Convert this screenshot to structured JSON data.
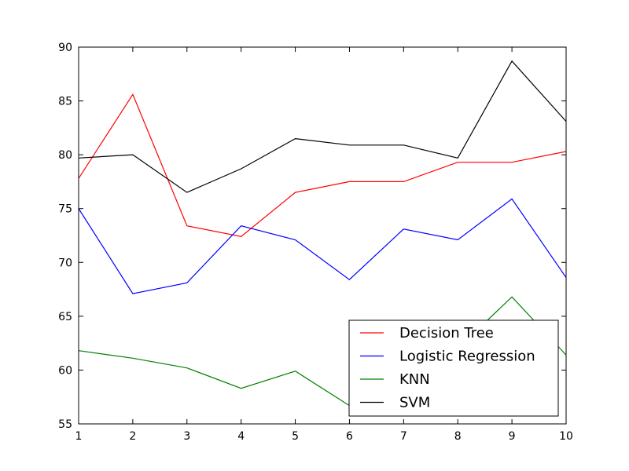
{
  "chart_data": {
    "type": "line",
    "title": "",
    "xlabel": "",
    "ylabel": "",
    "x": [
      1,
      2,
      3,
      4,
      5,
      6,
      7,
      8,
      9,
      10
    ],
    "xlim": [
      1,
      10
    ],
    "ylim": [
      55,
      90
    ],
    "xticks": [
      1,
      2,
      3,
      4,
      5,
      6,
      7,
      8,
      9,
      10
    ],
    "yticks": [
      55,
      60,
      65,
      70,
      75,
      80,
      85,
      90
    ],
    "grid": false,
    "legend_position": "bottom-right",
    "series": [
      {
        "name": "Decision Tree",
        "color": "#ff0000",
        "values": [
          77.8,
          85.6,
          73.4,
          72.4,
          76.5,
          77.5,
          77.5,
          79.3,
          79.3,
          80.3
        ]
      },
      {
        "name": "Logistic Regression",
        "color": "#0000ff",
        "values": [
          75.0,
          67.1,
          68.1,
          73.4,
          72.1,
          68.4,
          73.1,
          72.1,
          75.9,
          68.6
        ]
      },
      {
        "name": "KNN",
        "color": "#008000",
        "values": [
          61.8,
          61.1,
          60.2,
          58.3,
          59.9,
          56.7,
          56.2,
          62.0,
          66.8,
          61.4
        ]
      },
      {
        "name": "SVM",
        "color": "#000000",
        "values": [
          79.7,
          80.0,
          76.5,
          78.7,
          81.5,
          80.9,
          80.9,
          79.7,
          88.7,
          83.1
        ]
      }
    ]
  }
}
